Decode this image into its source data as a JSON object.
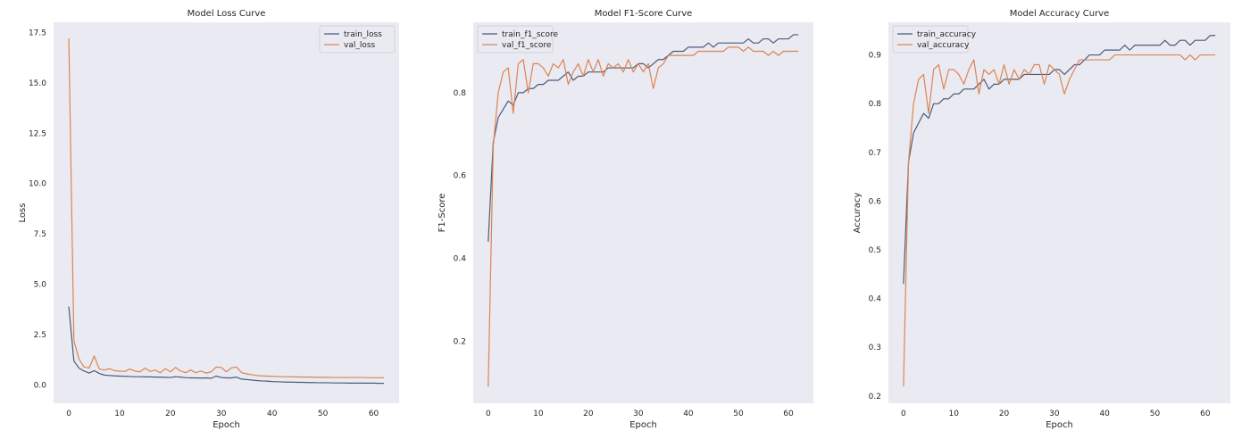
{
  "chart_data": [
    {
      "type": "line",
      "title": "Model Loss Curve",
      "xlabel": "Epoch",
      "ylabel": "Loss",
      "xlim": [
        -3,
        65
      ],
      "ylim": [
        -0.9,
        18.0
      ],
      "xticks": [
        0,
        10,
        20,
        30,
        40,
        50,
        60
      ],
      "xtick_labels": [
        "0",
        "10",
        "20",
        "30",
        "40",
        "50",
        "60"
      ],
      "yticks": [
        0.0,
        2.5,
        5.0,
        7.5,
        10.0,
        12.5,
        15.0,
        17.5
      ],
      "ytick_labels": [
        "0.0",
        "2.5",
        "5.0",
        "7.5",
        "10.0",
        "12.5",
        "15.0",
        "17.5"
      ],
      "legend_position": "top-right",
      "series": [
        {
          "name": "train_loss",
          "color": "#4c5a79",
          "values": [
            3.9,
            1.2,
            0.85,
            0.7,
            0.6,
            0.72,
            0.58,
            0.5,
            0.48,
            0.46,
            0.45,
            0.44,
            0.43,
            0.42,
            0.42,
            0.41,
            0.41,
            0.4,
            0.4,
            0.39,
            0.38,
            0.42,
            0.4,
            0.37,
            0.36,
            0.36,
            0.35,
            0.36,
            0.34,
            0.45,
            0.38,
            0.36,
            0.36,
            0.4,
            0.3,
            0.28,
            0.25,
            0.23,
            0.21,
            0.2,
            0.18,
            0.17,
            0.16,
            0.15,
            0.15,
            0.14,
            0.14,
            0.13,
            0.13,
            0.12,
            0.12,
            0.12,
            0.11,
            0.11,
            0.11,
            0.1,
            0.1,
            0.1,
            0.1,
            0.1,
            0.1,
            0.09,
            0.09
          ]
        },
        {
          "name": "val_loss",
          "color": "#dd8452",
          "values": [
            17.2,
            2.2,
            1.3,
            0.9,
            0.85,
            1.45,
            0.8,
            0.75,
            0.82,
            0.72,
            0.7,
            0.68,
            0.8,
            0.7,
            0.66,
            0.85,
            0.68,
            0.75,
            0.62,
            0.82,
            0.66,
            0.88,
            0.7,
            0.62,
            0.75,
            0.62,
            0.7,
            0.6,
            0.66,
            0.9,
            0.88,
            0.66,
            0.86,
            0.9,
            0.62,
            0.56,
            0.52,
            0.48,
            0.46,
            0.45,
            0.44,
            0.43,
            0.42,
            0.42,
            0.41,
            0.41,
            0.4,
            0.4,
            0.4,
            0.39,
            0.39,
            0.39,
            0.38,
            0.38,
            0.38,
            0.38,
            0.38,
            0.38,
            0.38,
            0.37,
            0.37,
            0.37,
            0.37
          ]
        }
      ]
    },
    {
      "type": "line",
      "title": "Model F1-Score Curve",
      "xlabel": "Epoch",
      "ylabel": "F1-Score",
      "xlim": [
        -3,
        65
      ],
      "ylim": [
        0.05,
        0.97
      ],
      "xticks": [
        0,
        10,
        20,
        30,
        40,
        50,
        60
      ],
      "xtick_labels": [
        "0",
        "10",
        "20",
        "30",
        "40",
        "50",
        "60"
      ],
      "yticks": [
        0.2,
        0.4,
        0.6,
        0.8
      ],
      "ytick_labels": [
        "0.2",
        "0.4",
        "0.6",
        "0.8"
      ],
      "legend_position": "top-left",
      "series": [
        {
          "name": "train_f1_score",
          "color": "#4c5a79",
          "values": [
            0.44,
            0.68,
            0.74,
            0.76,
            0.78,
            0.77,
            0.8,
            0.8,
            0.81,
            0.81,
            0.82,
            0.82,
            0.83,
            0.83,
            0.83,
            0.84,
            0.85,
            0.83,
            0.84,
            0.84,
            0.85,
            0.85,
            0.85,
            0.85,
            0.86,
            0.86,
            0.86,
            0.86,
            0.86,
            0.86,
            0.87,
            0.87,
            0.86,
            0.87,
            0.88,
            0.88,
            0.89,
            0.9,
            0.9,
            0.9,
            0.91,
            0.91,
            0.91,
            0.91,
            0.92,
            0.91,
            0.92,
            0.92,
            0.92,
            0.92,
            0.92,
            0.92,
            0.93,
            0.92,
            0.92,
            0.93,
            0.93,
            0.92,
            0.93,
            0.93,
            0.93,
            0.94,
            0.94
          ]
        },
        {
          "name": "val_f1_score",
          "color": "#dd8452",
          "values": [
            0.09,
            0.67,
            0.8,
            0.85,
            0.86,
            0.75,
            0.87,
            0.88,
            0.8,
            0.87,
            0.87,
            0.86,
            0.84,
            0.87,
            0.86,
            0.88,
            0.82,
            0.85,
            0.87,
            0.84,
            0.88,
            0.85,
            0.88,
            0.84,
            0.87,
            0.86,
            0.87,
            0.85,
            0.88,
            0.85,
            0.87,
            0.85,
            0.87,
            0.81,
            0.86,
            0.87,
            0.89,
            0.89,
            0.89,
            0.89,
            0.89,
            0.89,
            0.9,
            0.9,
            0.9,
            0.9,
            0.9,
            0.9,
            0.91,
            0.91,
            0.91,
            0.9,
            0.91,
            0.9,
            0.9,
            0.9,
            0.89,
            0.9,
            0.89,
            0.9,
            0.9,
            0.9,
            0.9
          ]
        }
      ]
    },
    {
      "type": "line",
      "title": "Model Accuracy Curve",
      "xlabel": "Epoch",
      "ylabel": "Accuracy",
      "xlim": [
        -3,
        65
      ],
      "ylim": [
        0.185,
        0.967
      ],
      "xticks": [
        0,
        10,
        20,
        30,
        40,
        50,
        60
      ],
      "xtick_labels": [
        "0",
        "10",
        "20",
        "30",
        "40",
        "50",
        "60"
      ],
      "yticks": [
        0.2,
        0.3,
        0.4,
        0.5,
        0.6,
        0.7,
        0.8,
        0.9
      ],
      "ytick_labels": [
        "0.2",
        "0.3",
        "0.4",
        "0.5",
        "0.6",
        "0.7",
        "0.8",
        "0.9"
      ],
      "legend_position": "top-left",
      "series": [
        {
          "name": "train_accuracy",
          "color": "#4c5a79",
          "values": [
            0.43,
            0.68,
            0.74,
            0.76,
            0.78,
            0.77,
            0.8,
            0.8,
            0.81,
            0.81,
            0.82,
            0.82,
            0.83,
            0.83,
            0.83,
            0.84,
            0.85,
            0.83,
            0.84,
            0.84,
            0.85,
            0.85,
            0.85,
            0.85,
            0.86,
            0.86,
            0.86,
            0.86,
            0.86,
            0.86,
            0.87,
            0.87,
            0.86,
            0.87,
            0.88,
            0.88,
            0.89,
            0.9,
            0.9,
            0.9,
            0.91,
            0.91,
            0.91,
            0.91,
            0.92,
            0.91,
            0.92,
            0.92,
            0.92,
            0.92,
            0.92,
            0.92,
            0.93,
            0.92,
            0.92,
            0.93,
            0.93,
            0.92,
            0.93,
            0.93,
            0.93,
            0.94,
            0.94
          ]
        },
        {
          "name": "val_accuracy",
          "color": "#dd8452",
          "values": [
            0.22,
            0.68,
            0.8,
            0.85,
            0.86,
            0.78,
            0.87,
            0.88,
            0.83,
            0.87,
            0.87,
            0.86,
            0.84,
            0.87,
            0.89,
            0.82,
            0.87,
            0.86,
            0.87,
            0.84,
            0.88,
            0.84,
            0.87,
            0.85,
            0.87,
            0.86,
            0.88,
            0.88,
            0.84,
            0.88,
            0.87,
            0.86,
            0.82,
            0.85,
            0.87,
            0.89,
            0.89,
            0.89,
            0.89,
            0.89,
            0.89,
            0.89,
            0.9,
            0.9,
            0.9,
            0.9,
            0.9,
            0.9,
            0.9,
            0.9,
            0.9,
            0.9,
            0.9,
            0.9,
            0.9,
            0.9,
            0.89,
            0.9,
            0.89,
            0.9,
            0.9,
            0.9,
            0.9
          ]
        }
      ]
    }
  ]
}
